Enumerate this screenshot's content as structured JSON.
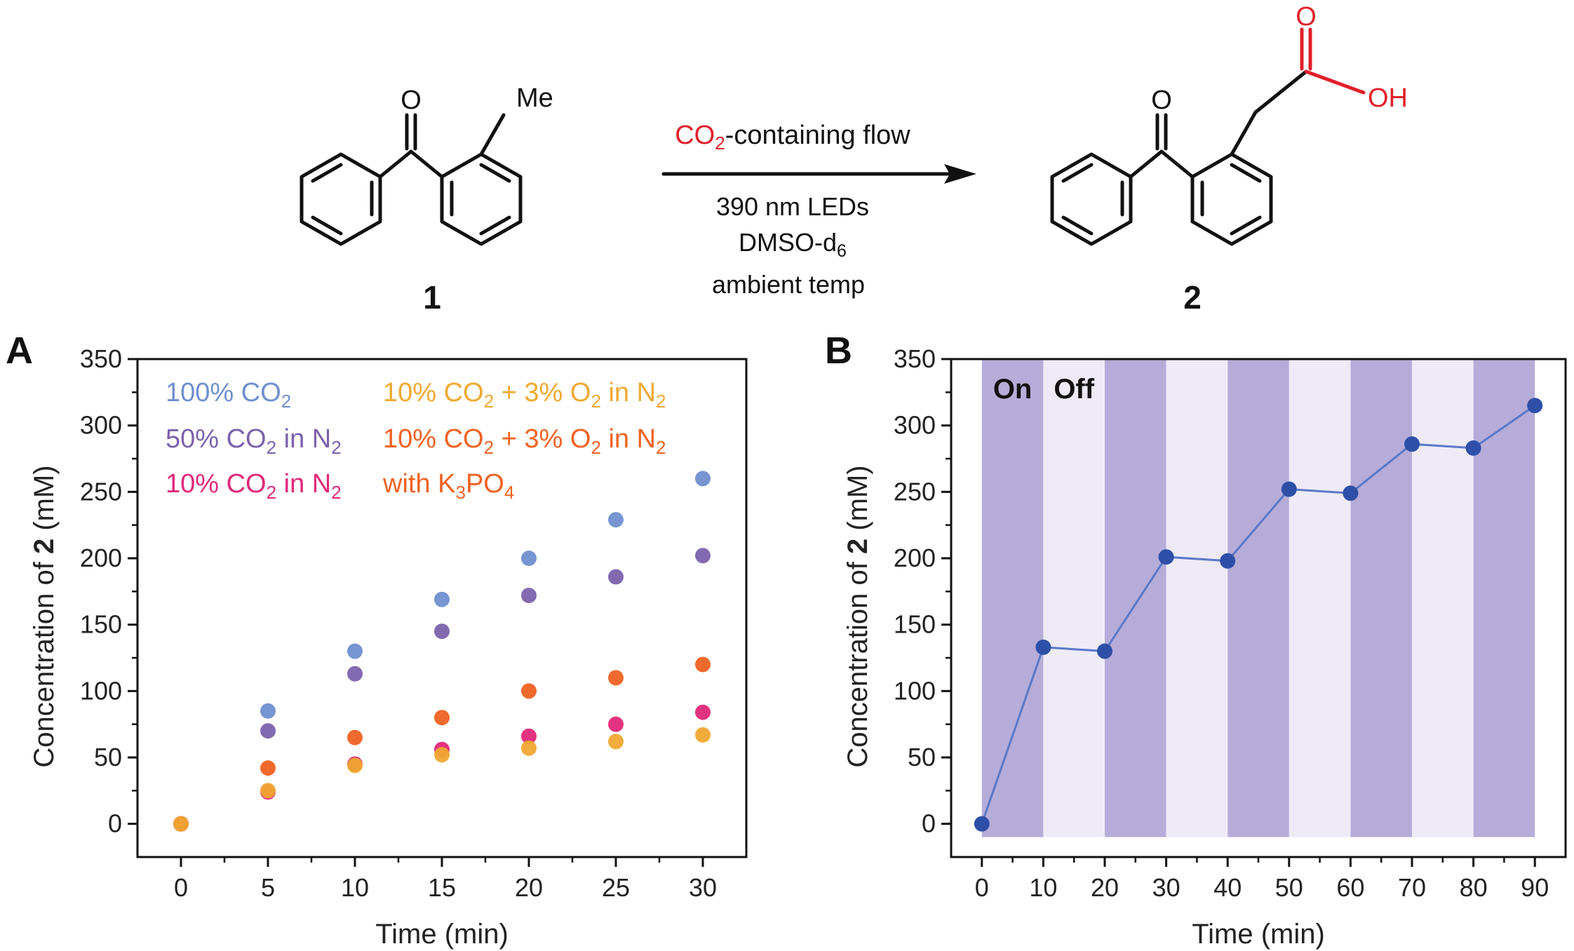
{
  "scheme": {
    "reactant": {
      "label": "1",
      "substituent": "Me",
      "carbonyl": "O"
    },
    "product": {
      "label": "2",
      "carbonyl": "O",
      "acid_o": "O",
      "acid_oh": "OH"
    },
    "conditions": {
      "reagent_red": "CO",
      "reagent_sub": "2",
      "reagent_rest": "-containing flow",
      "line1": "390 nm LEDs",
      "line2_main": "DMSO-d",
      "line2_sub": "6",
      "line3": "ambient temp"
    },
    "colors": {
      "red": "#e0202a",
      "bond": "#111111"
    }
  },
  "panelA": {
    "label": "A",
    "legend": [
      {
        "color": "#6f8fcf",
        "parts": [
          "100% CO",
          "2",
          ""
        ]
      },
      {
        "color": "#7b62ad",
        "parts": [
          "50% CO",
          "2",
          " in N",
          "2",
          ""
        ]
      },
      {
        "color": "#e0287a",
        "parts": [
          "10% CO",
          "2",
          " in N",
          "2",
          ""
        ]
      },
      {
        "color": "#f0a830",
        "parts": [
          "10% CO",
          "2",
          " + 3% O",
          "2",
          " in N",
          "2",
          ""
        ]
      },
      {
        "color": "#f06222",
        "parts": [
          "10% CO",
          "2",
          " + 3% O",
          "2",
          " in N",
          "2",
          ""
        ]
      },
      {
        "color": "#f06222",
        "parts": [
          "with K",
          "3",
          "PO",
          "4",
          ""
        ]
      }
    ]
  },
  "panelB": {
    "label": "B",
    "on_label": "On",
    "off_label": "Off",
    "shade_color": "#9a8ccb"
  },
  "chart_data": [
    {
      "type": "scatter",
      "title": "",
      "xlabel": "Time (min)",
      "ylabel_parts": [
        "Concentration of ",
        "2",
        " (mM)"
      ],
      "xlim": [
        -2.5,
        32.5
      ],
      "ylim": [
        -25,
        350
      ],
      "xticks": [
        0,
        5,
        10,
        15,
        20,
        25,
        30
      ],
      "yticks": [
        0,
        50,
        100,
        150,
        200,
        250,
        300,
        350
      ],
      "grid": false,
      "legend_position": "top-left",
      "x": [
        0,
        5,
        10,
        15,
        20,
        25,
        30
      ],
      "series": [
        {
          "name": "100% CO2",
          "color": "#6f8fcf",
          "values": [
            0,
            85,
            130,
            169,
            200,
            229,
            260
          ]
        },
        {
          "name": "50% CO2 in N2",
          "color": "#7b62ad",
          "values": [
            0,
            70,
            113,
            145,
            172,
            186,
            202
          ]
        },
        {
          "name": "10% CO2 + 3% O2 in N2 with K3PO4",
          "color": "#f06222",
          "values": [
            0,
            42,
            65,
            80,
            100,
            110,
            120
          ]
        },
        {
          "name": "10% CO2 in N2",
          "color": "#e0287a",
          "values": [
            0,
            24,
            45,
            56,
            66,
            75,
            84
          ]
        },
        {
          "name": "10% CO2 + 3% O2 in N2",
          "color": "#f0a830",
          "values": [
            0,
            25,
            44,
            52,
            57,
            62,
            67
          ]
        }
      ]
    },
    {
      "type": "line",
      "title": "",
      "xlabel": "Time (min)",
      "ylabel_parts": [
        "Concentration of ",
        "2",
        " (mM)"
      ],
      "xlim": [
        -5,
        95
      ],
      "ylim": [
        -25,
        350
      ],
      "xticks": [
        0,
        10,
        20,
        30,
        40,
        50,
        60,
        70,
        80,
        90
      ],
      "yticks": [
        0,
        50,
        100,
        150,
        200,
        250,
        300,
        350
      ],
      "grid": false,
      "light_on_intervals": [
        [
          0,
          10
        ],
        [
          20,
          30
        ],
        [
          40,
          50
        ],
        [
          60,
          70
        ],
        [
          80,
          90
        ]
      ],
      "x": [
        0,
        10,
        20,
        30,
        40,
        50,
        60,
        70,
        80,
        90
      ],
      "series": [
        {
          "color": "#2e4fa8",
          "values": [
            0,
            133,
            130,
            201,
            198,
            252,
            249,
            286,
            283,
            315
          ]
        }
      ]
    }
  ]
}
